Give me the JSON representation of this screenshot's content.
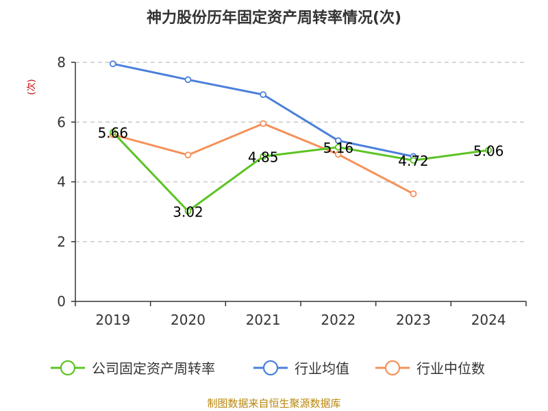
{
  "chart_data": {
    "type": "line",
    "title": "神力股份历年固定资产周转率情况(次)",
    "ylabel": "(次)",
    "xlabel": "",
    "categories": [
      "2019",
      "2020",
      "2021",
      "2022",
      "2023",
      "2024"
    ],
    "ylim": [
      0,
      8
    ],
    "yticks": [
      0,
      2,
      4,
      6,
      8
    ],
    "grid": true,
    "legend_position": "bottom",
    "series": [
      {
        "name": "公司固定资产周转率",
        "color": "#5cc324",
        "values": [
          5.66,
          3.02,
          4.85,
          5.16,
          4.72,
          5.06
        ],
        "labels": [
          "5.66",
          "3.02",
          "4.85",
          "5.16",
          "4.72",
          "5.06"
        ]
      },
      {
        "name": "行业均值",
        "color": "#4a7fdb",
        "values": [
          7.95,
          7.42,
          6.92,
          5.38,
          4.85,
          null
        ]
      },
      {
        "name": "行业中位数",
        "color": "#f5915a",
        "values": [
          5.58,
          4.9,
          5.95,
          4.92,
          3.6,
          null
        ]
      }
    ],
    "source": "制图数据来自恒生聚源数据库"
  }
}
